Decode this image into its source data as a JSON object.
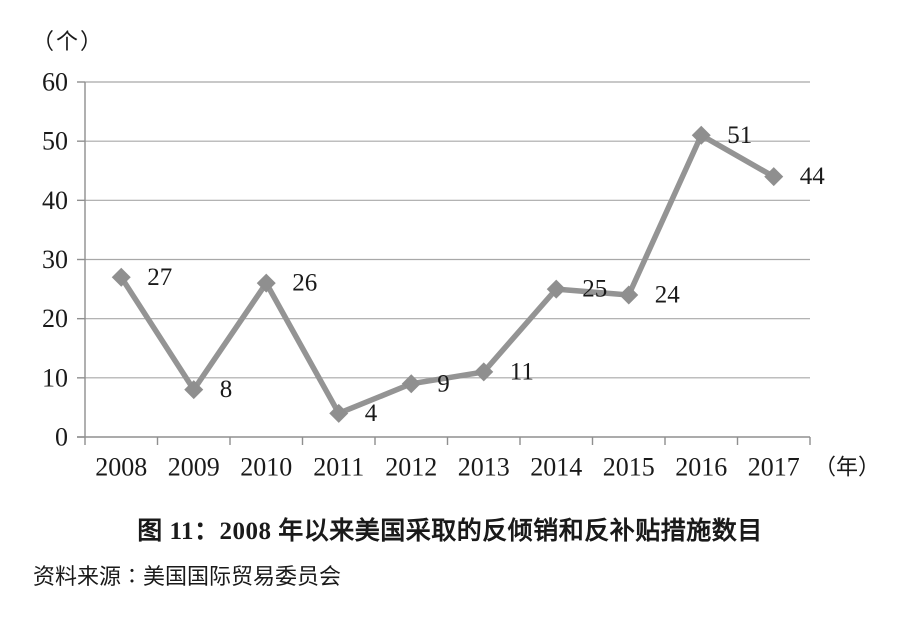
{
  "page": {
    "background": "#ffffff"
  },
  "chart_data": {
    "type": "line",
    "title": "图 11：2008 年以来美国采取的反倾销和反补贴措施数目",
    "source": "资料来源∶美国国际贸易委员会",
    "ylabel": "（个）",
    "xlabel_suffix": "（年）",
    "categories": [
      "2008",
      "2009",
      "2010",
      "2011",
      "2012",
      "2013",
      "2014",
      "2015",
      "2016",
      "2017"
    ],
    "values": [
      27,
      8,
      26,
      4,
      9,
      11,
      25,
      24,
      51,
      44
    ],
    "data_labels": [
      "27",
      "8",
      "26",
      "4",
      "9",
      "11",
      "25",
      "24",
      "51",
      "44"
    ],
    "yticks": [
      0,
      10,
      20,
      30,
      40,
      50,
      60
    ],
    "ylim": [
      0,
      60
    ],
    "grid": true,
    "legend_position": "none",
    "colors": {
      "line": "#949494",
      "marker": "#8f8f8f",
      "grid": "#a8a8a8",
      "axis": "#8f8f8f",
      "text": "#1a1a1a"
    }
  }
}
